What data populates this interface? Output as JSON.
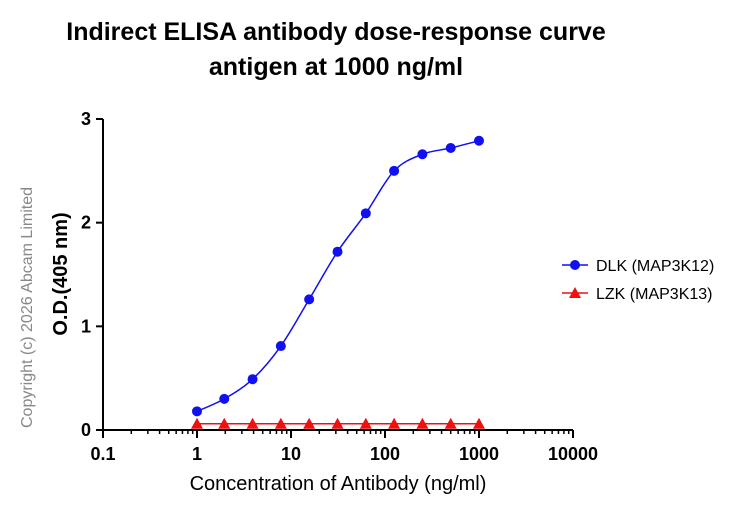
{
  "chart_data": {
    "type": "line",
    "title": "Indirect ELISA antibody dose-response curve",
    "subtitle": "antigen at 1000 ng/ml",
    "xlabel": "Concentration of Antibody (ng/ml)",
    "ylabel": "O.D.(405 nm)",
    "xscale": "log",
    "xlim": [
      0.1,
      10000
    ],
    "ylim": [
      0,
      3
    ],
    "xticks": [
      "0.1",
      "1",
      "10",
      "100",
      "1000",
      "10000"
    ],
    "yticks": [
      "0",
      "1",
      "2",
      "3"
    ],
    "grid": false,
    "legend_placement": "right",
    "series": [
      {
        "name": "DLK (MAP3K12)",
        "color": "#1010f0",
        "marker": "circle",
        "x": [
          1,
          1.95,
          3.9,
          7.8,
          15.6,
          31.25,
          62.5,
          125,
          250,
          500,
          1000
        ],
        "y": [
          0.18,
          0.3,
          0.49,
          0.81,
          1.26,
          1.72,
          2.09,
          2.5,
          2.66,
          2.72,
          2.79
        ]
      },
      {
        "name": "LZK (MAP3K13)",
        "color": "#f01010",
        "marker": "triangle",
        "x": [
          1,
          1.95,
          3.9,
          7.8,
          15.6,
          31.25,
          62.5,
          125,
          250,
          500,
          1000
        ],
        "y": [
          0.06,
          0.06,
          0.06,
          0.06,
          0.06,
          0.06,
          0.06,
          0.06,
          0.06,
          0.06,
          0.06
        ]
      }
    ]
  },
  "watermark": "Copyright (c) 2026 Abcam Limited"
}
